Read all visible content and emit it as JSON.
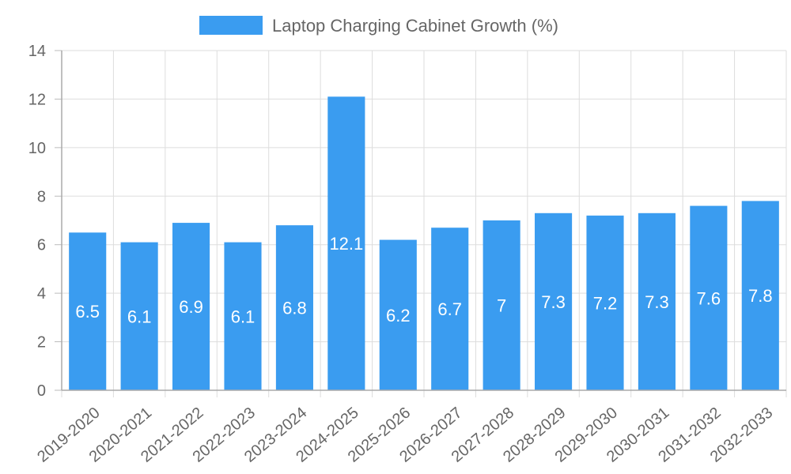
{
  "chart_data": {
    "type": "bar",
    "title": "",
    "xlabel": "",
    "ylabel": "",
    "series": [
      {
        "name": "Laptop Charging Cabinet Growth (%)",
        "color": "#3a9cf0",
        "values": [
          6.5,
          6.1,
          6.9,
          6.1,
          6.8,
          12.1,
          6.2,
          6.7,
          7,
          7.3,
          7.2,
          7.3,
          7.6,
          7.8
        ]
      }
    ],
    "categories": [
      "2019-2020",
      "2020-2021",
      "2021-2022",
      "2022-2023",
      "2023-2024",
      "2024-2025",
      "2025-2026",
      "2026-2027",
      "2027-2028",
      "2028-2029",
      "2029-2030",
      "2030-2031",
      "2031-2032",
      "2032-2033"
    ],
    "data_labels": [
      "6.5",
      "6.1",
      "6.9",
      "6.1",
      "6.8",
      "12.1",
      "6.2",
      "6.7",
      "7",
      "7.3",
      "7.2",
      "7.3",
      "7.6",
      "7.8"
    ],
    "y_ticks": [
      "0",
      "2",
      "4",
      "6",
      "8",
      "10",
      "12",
      "14"
    ],
    "ylim": [
      0,
      14
    ],
    "grid": true,
    "legend_position": "top-center"
  }
}
